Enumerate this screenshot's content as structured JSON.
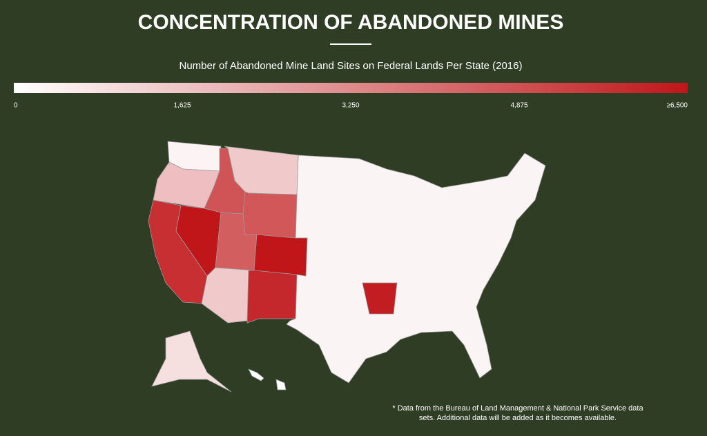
{
  "title": "CONCENTRATION OF ABANDONED MINES",
  "subtitle": "Number of Abandoned Mine Land Sites on Federal Lands Per State (2016)",
  "legend": {
    "min_color": "#ffffff",
    "max_color": "#c0161a",
    "ticks": [
      0,
      {
        "value": 1625,
        "label": "1,625"
      },
      {
        "value": 3250,
        "label": "3,250"
      },
      {
        "value": 4875,
        "label": "4,875"
      },
      {
        "value": 6500,
        "label": "≥6,500"
      }
    ]
  },
  "regions": [
    {
      "value": 300
    },
    {
      "value": 1800
    },
    {
      "value": 5800
    },
    {
      "value": 6500
    },
    {
      "value": 4800
    },
    {
      "value": 1500
    },
    {
      "value": 4700
    },
    {
      "value": 4500
    },
    {
      "value": 6500
    },
    {
      "value": 1500
    },
    {
      "value": 6000
    },
    {
      "value": 6300
    },
    {
      "value": 900
    }
  ],
  "footnote": [
    "* Data from the Bureau of Land Management & National Park Service data",
    "sets. Additional data will be added as it becomes available."
  ]
}
